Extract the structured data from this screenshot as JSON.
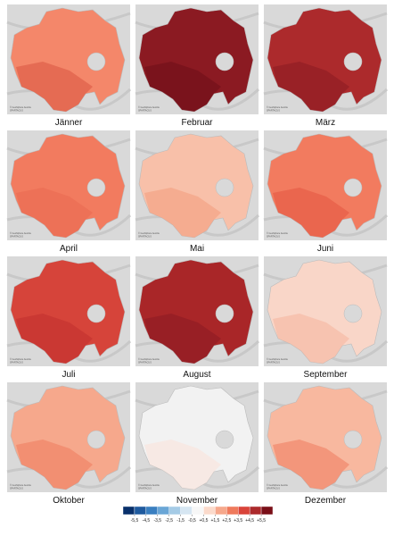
{
  "credit_line_1": "© GeoSphere Austria",
  "credit_line_2": "SPARTACUS",
  "panels": [
    {
      "label": "Jänner",
      "color": "#f4876a",
      "accent": "#d9533f"
    },
    {
      "label": "Februar",
      "color": "#8b1a22",
      "accent": "#6e0f18"
    },
    {
      "label": "März",
      "color": "#ac2a2c",
      "accent": "#8b1a22"
    },
    {
      "label": "April",
      "color": "#f27b5f",
      "accent": "#ea6a50"
    },
    {
      "label": "Mai",
      "color": "#f8c0a9",
      "accent": "#f29a7c"
    },
    {
      "label": "Juni",
      "color": "#f27b5f",
      "accent": "#e4553f"
    },
    {
      "label": "Juli",
      "color": "#d6443a",
      "accent": "#c1302e"
    },
    {
      "label": "August",
      "color": "#a92628",
      "accent": "#8b1a22"
    },
    {
      "label": "September",
      "color": "#f9d6c8",
      "accent": "#f6b49c"
    },
    {
      "label": "Oktober",
      "color": "#f6a88c",
      "accent": "#ee7a5c"
    },
    {
      "label": "November",
      "color": "#f2f2f2",
      "accent": "#fbe2d8"
    },
    {
      "label": "Dezember",
      "color": "#f8b89f",
      "accent": "#ee7a5c"
    }
  ],
  "legend": {
    "colors": [
      "#08306b",
      "#1f5a9e",
      "#3a7fc0",
      "#6aa6d6",
      "#a5cbe6",
      "#d6e6f2",
      "#f7f7f7",
      "#fbdacb",
      "#f6a88c",
      "#ef7a5c",
      "#d9443a",
      "#ac2a2c",
      "#7a0f18"
    ],
    "ticks": [
      {
        "value": -5.5,
        "label": "-5,5"
      },
      {
        "value": -4.5,
        "label": "-4,5"
      },
      {
        "value": -3.5,
        "label": "-3,5"
      },
      {
        "value": -2.5,
        "label": "-2,5"
      },
      {
        "value": -1.5,
        "label": "-1,5"
      },
      {
        "value": -0.5,
        "label": "-0,5"
      },
      {
        "value": 0.5,
        "label": "+0,5"
      },
      {
        "value": 1.5,
        "label": "+1,5"
      },
      {
        "value": 2.5,
        "label": "+2,5"
      },
      {
        "value": 3.5,
        "label": "+3,5"
      },
      {
        "value": 4.5,
        "label": "+4,5"
      },
      {
        "value": 5.5,
        "label": "+5,5"
      }
    ]
  }
}
